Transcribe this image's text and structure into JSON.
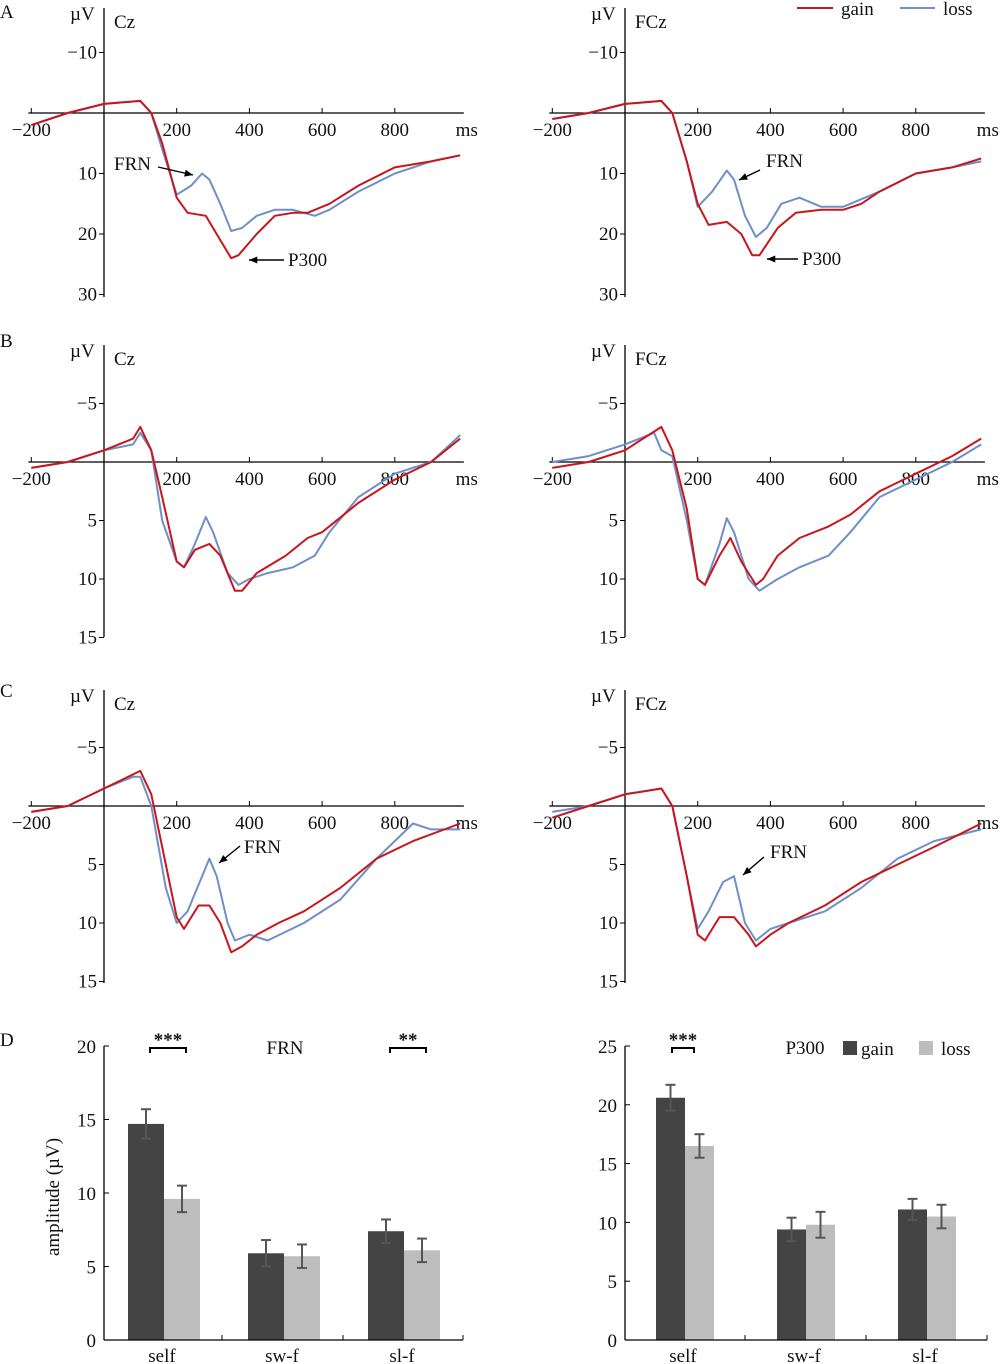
{
  "panel_letters": [
    "A",
    "B",
    "C",
    "D"
  ],
  "legend": {
    "gain": "gain",
    "loss": "loss",
    "gain_color": "#c8161d",
    "loss_color": "#6f8fc7"
  },
  "bar_legend": {
    "gain": "gain",
    "loss": "loss",
    "gain_color": "#444444",
    "loss_color": "#bdbdbd"
  },
  "chart_data": [
    {
      "type": "line",
      "panel": "A",
      "title": "Cz",
      "ylabel": "µV",
      "xlabel": "ms",
      "xticks": [
        -200,
        200,
        400,
        600,
        800
      ],
      "xtick_labels": [
        "−200",
        "200",
        "400",
        "600",
        "800"
      ],
      "yticks": [
        -10,
        10,
        20,
        30
      ],
      "ytick_labels": [
        "−10",
        "10",
        "20",
        "30"
      ],
      "ylim": [
        -17,
        31
      ],
      "xlim": [
        -200,
        990
      ],
      "y_inverted": true,
      "annotations": [
        {
          "text": "FRN"
        },
        {
          "text": "P300"
        }
      ],
      "series": [
        {
          "name": "gain",
          "x": [
            -200,
            -100,
            0,
            100,
            130,
            160,
            200,
            230,
            280,
            320,
            350,
            370,
            420,
            470,
            520,
            560,
            620,
            700,
            800,
            900,
            980
          ],
          "y": [
            2,
            0,
            -1.5,
            -2,
            0,
            5,
            14,
            16.5,
            17,
            21,
            24,
            23.5,
            20,
            17,
            16.5,
            16.5,
            15,
            12,
            9,
            8,
            7
          ]
        },
        {
          "name": "loss",
          "x": [
            -200,
            -100,
            0,
            100,
            130,
            160,
            200,
            240,
            270,
            290,
            320,
            350,
            380,
            420,
            470,
            520,
            580,
            620,
            700,
            800,
            900,
            980
          ],
          "y": [
            2,
            0,
            -1.5,
            -2,
            0,
            6,
            13.5,
            12,
            10,
            11,
            15,
            19.5,
            19,
            17,
            16,
            16,
            17,
            16,
            13,
            10,
            8,
            7
          ]
        }
      ]
    },
    {
      "type": "line",
      "panel": "A",
      "title": "FCz",
      "ylabel": "µV",
      "xlabel": "ms",
      "xticks": [
        -200,
        200,
        400,
        600,
        800
      ],
      "xtick_labels": [
        "−200",
        "200",
        "400",
        "600",
        "800"
      ],
      "yticks": [
        -10,
        10,
        20,
        30
      ],
      "ytick_labels": [
        "−10",
        "10",
        "20",
        "30"
      ],
      "ylim": [
        -17,
        31
      ],
      "xlim": [
        -200,
        990
      ],
      "y_inverted": true,
      "annotations": [
        {
          "text": "FRN"
        },
        {
          "text": "P300"
        }
      ],
      "series": [
        {
          "name": "gain",
          "x": [
            -200,
            -100,
            0,
            100,
            130,
            170,
            200,
            230,
            280,
            320,
            350,
            370,
            420,
            470,
            540,
            600,
            650,
            700,
            800,
            900,
            980
          ],
          "y": [
            1,
            0,
            -1.5,
            -2,
            0,
            8,
            15,
            18.5,
            18,
            20,
            23.5,
            23.5,
            19,
            16.5,
            16,
            16,
            15,
            13,
            10,
            9,
            7.5
          ]
        },
        {
          "name": "loss",
          "x": [
            -200,
            -100,
            0,
            100,
            130,
            170,
            200,
            240,
            280,
            300,
            330,
            360,
            390,
            430,
            480,
            540,
            600,
            700,
            800,
            900,
            980
          ],
          "y": [
            1,
            0,
            -1.5,
            -2,
            0,
            8,
            15.5,
            13,
            9.5,
            11,
            17,
            20.5,
            19,
            15,
            14,
            15.5,
            15.5,
            13,
            10,
            9,
            8
          ]
        }
      ]
    },
    {
      "type": "line",
      "panel": "B",
      "title": "Cz",
      "ylabel": "µV",
      "xlabel": "ms",
      "xticks": [
        -200,
        200,
        400,
        600,
        800
      ],
      "xtick_labels": [
        "−200",
        "200",
        "400",
        "600",
        "800"
      ],
      "yticks": [
        -5,
        5,
        10,
        15
      ],
      "ytick_labels": [
        "−5",
        "5",
        "10",
        "15"
      ],
      "ylim": [
        -9.5,
        15
      ],
      "xlim": [
        -200,
        990
      ],
      "y_inverted": true,
      "annotations": [],
      "series": [
        {
          "name": "gain",
          "x": [
            -200,
            -100,
            0,
            80,
            100,
            130,
            160,
            200,
            220,
            250,
            290,
            320,
            360,
            380,
            420,
            500,
            560,
            600,
            700,
            800,
            900,
            980
          ],
          "y": [
            0.5,
            0,
            -1,
            -2,
            -3,
            -1,
            3,
            8.5,
            9,
            7.5,
            7,
            8,
            11,
            11,
            9.5,
            8,
            6.5,
            6,
            3.5,
            1.5,
            0,
            -2
          ]
        },
        {
          "name": "loss",
          "x": [
            -200,
            -100,
            0,
            80,
            100,
            130,
            160,
            200,
            220,
            250,
            280,
            300,
            340,
            370,
            400,
            450,
            520,
            580,
            620,
            700,
            800,
            900,
            980
          ],
          "y": [
            0.5,
            0,
            -1,
            -1.5,
            -2.5,
            -1,
            5,
            8.5,
            9,
            7,
            4.7,
            6,
            9.5,
            10.5,
            10,
            9.5,
            9,
            8,
            6,
            3,
            1,
            0,
            -2.3
          ]
        }
      ]
    },
    {
      "type": "line",
      "panel": "B",
      "title": "FCz",
      "ylabel": "µV",
      "xlabel": "ms",
      "xticks": [
        -200,
        200,
        400,
        600,
        800
      ],
      "xtick_labels": [
        "−200",
        "200",
        "400",
        "600",
        "800"
      ],
      "yticks": [
        -5,
        5,
        10,
        15
      ],
      "ytick_labels": [
        "−5",
        "5",
        "10",
        "15"
      ],
      "ylim": [
        -9.5,
        15
      ],
      "xlim": [
        -200,
        990
      ],
      "y_inverted": true,
      "annotations": [],
      "series": [
        {
          "name": "gain",
          "x": [
            -200,
            -100,
            0,
            100,
            130,
            170,
            200,
            220,
            260,
            290,
            320,
            360,
            380,
            420,
            480,
            560,
            620,
            700,
            800,
            900,
            980
          ],
          "y": [
            0.5,
            0,
            -1,
            -3,
            -1,
            4,
            10,
            10.5,
            8,
            6.5,
            8.5,
            10.5,
            10,
            8,
            6.5,
            5.5,
            4.5,
            2.5,
            1,
            -0.5,
            -2
          ]
        },
        {
          "name": "loss",
          "x": [
            -200,
            -100,
            0,
            80,
            100,
            130,
            170,
            200,
            220,
            260,
            280,
            300,
            340,
            370,
            420,
            480,
            560,
            620,
            700,
            800,
            900,
            980
          ],
          "y": [
            0,
            -0.5,
            -1.5,
            -2.5,
            -1,
            -0.5,
            5,
            10,
            10.5,
            7,
            4.8,
            6,
            10,
            11,
            10,
            9,
            8,
            6,
            3,
            1.5,
            0,
            -1.5
          ]
        }
      ]
    },
    {
      "type": "line",
      "panel": "C",
      "title": "Cz",
      "ylabel": "µV",
      "xlabel": "ms",
      "xticks": [
        -200,
        200,
        400,
        600,
        800
      ],
      "xtick_labels": [
        "−200",
        "200",
        "400",
        "600",
        "800"
      ],
      "yticks": [
        -5,
        5,
        10,
        15
      ],
      "ytick_labels": [
        "−5",
        "5",
        "10",
        "15"
      ],
      "ylim": [
        -9.5,
        15
      ],
      "xlim": [
        -200,
        990
      ],
      "y_inverted": true,
      "annotations": [
        {
          "text": "FRN"
        }
      ],
      "series": [
        {
          "name": "gain",
          "x": [
            -200,
            -100,
            0,
            100,
            130,
            170,
            200,
            220,
            260,
            290,
            320,
            350,
            380,
            420,
            480,
            550,
            650,
            750,
            850,
            980
          ],
          "y": [
            0.5,
            0,
            -1.5,
            -3,
            -1,
            5,
            9.5,
            10.5,
            8.5,
            8.5,
            10,
            12.5,
            12,
            11,
            10,
            9,
            7,
            4.5,
            3,
            1.5
          ]
        },
        {
          "name": "loss",
          "x": [
            -200,
            -100,
            0,
            80,
            100,
            130,
            170,
            200,
            230,
            270,
            290,
            310,
            340,
            360,
            400,
            450,
            550,
            650,
            750,
            850,
            900,
            980
          ],
          "y": [
            0.5,
            0,
            -1.5,
            -2.5,
            -2.5,
            0,
            7,
            10,
            9,
            6,
            4.5,
            6,
            10,
            11.5,
            11,
            11.5,
            10,
            8,
            4.5,
            1.5,
            2,
            2
          ]
        }
      ]
    },
    {
      "type": "line",
      "panel": "C",
      "title": "FCz",
      "ylabel": "µV",
      "xlabel": "ms",
      "xticks": [
        -200,
        200,
        400,
        600,
        800
      ],
      "xtick_labels": [
        "−200",
        "200",
        "400",
        "600",
        "800"
      ],
      "yticks": [
        -5,
        5,
        10,
        15
      ],
      "ytick_labels": [
        "−5",
        "5",
        "10",
        "15"
      ],
      "ylim": [
        -9.5,
        15
      ],
      "xlim": [
        -200,
        990
      ],
      "y_inverted": true,
      "annotations": [
        {
          "text": "FRN"
        }
      ],
      "series": [
        {
          "name": "gain",
          "x": [
            -200,
            -100,
            0,
            100,
            130,
            170,
            200,
            220,
            260,
            300,
            340,
            360,
            400,
            450,
            550,
            650,
            750,
            850,
            980
          ],
          "y": [
            1,
            0,
            -1,
            -1.5,
            0,
            6,
            11,
            11.5,
            9.5,
            9.5,
            11,
            12,
            11,
            10,
            8.5,
            6.5,
            5,
            3.5,
            1.5
          ]
        },
        {
          "name": "loss",
          "x": [
            -200,
            -100,
            0,
            100,
            130,
            170,
            200,
            230,
            270,
            300,
            330,
            360,
            400,
            450,
            550,
            650,
            750,
            850,
            980
          ],
          "y": [
            0.5,
            0,
            -1,
            -1.5,
            0,
            6,
            10.5,
            9,
            6.5,
            6,
            10,
            11.5,
            10.5,
            10,
            9,
            7,
            4.5,
            3,
            2
          ]
        }
      ]
    },
    {
      "type": "bar",
      "panel": "D",
      "title": "FRN",
      "ylabel": "amplitude (µV)",
      "categories": [
        "self",
        "sw-f",
        "sl-f"
      ],
      "yticks": [
        0,
        5,
        10,
        15,
        20
      ],
      "ylim": [
        0,
        20
      ],
      "series": [
        {
          "name": "gain",
          "values": [
            14.7,
            5.9,
            7.4
          ],
          "errors": [
            1.0,
            0.9,
            0.8
          ]
        },
        {
          "name": "loss",
          "values": [
            9.6,
            5.7,
            6.1
          ],
          "errors": [
            0.9,
            0.8,
            0.8
          ]
        }
      ],
      "significance": [
        {
          "category": "self",
          "label": "***"
        },
        {
          "category": "sl-f",
          "label": "**"
        }
      ]
    },
    {
      "type": "bar",
      "panel": "D",
      "title": "P300",
      "ylabel": "",
      "categories": [
        "self",
        "sw-f",
        "sl-f"
      ],
      "yticks": [
        0,
        5,
        10,
        15,
        20,
        25
      ],
      "ylim": [
        0,
        25
      ],
      "series": [
        {
          "name": "gain",
          "values": [
            20.6,
            9.4,
            11.1
          ],
          "errors": [
            1.1,
            1.0,
            0.9
          ]
        },
        {
          "name": "loss",
          "values": [
            16.5,
            9.8,
            10.5
          ],
          "errors": [
            1.0,
            1.1,
            1.0
          ]
        }
      ],
      "significance": [
        {
          "category": "self",
          "label": "***"
        }
      ]
    }
  ]
}
